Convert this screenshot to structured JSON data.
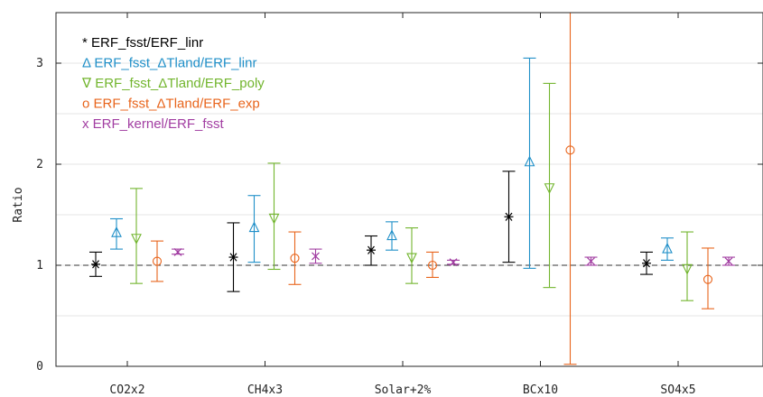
{
  "chart_data": {
    "type": "errorbar",
    "ylabel": "Ratio",
    "xlabel": "",
    "ylim": [
      0,
      3.5
    ],
    "yticks": [
      0,
      1,
      2,
      3
    ],
    "ytick_minor": [
      0.5,
      1.5,
      2.5,
      3.5
    ],
    "grid": "horizontal",
    "reference_line": 1,
    "legend_position": "top-left",
    "categories": [
      "CO2x2",
      "CH4x3",
      "Solar+2%",
      "BCx10",
      "SO4x5"
    ],
    "series": [
      {
        "name": "ERF_fsst/ERF_linr",
        "legend_symbol": "*",
        "marker": "asterisk",
        "color": "#000000",
        "values": [
          1.01,
          1.08,
          1.15,
          1.48,
          1.02
        ],
        "lower": [
          0.89,
          0.74,
          1.0,
          1.03,
          0.91
        ],
        "upper": [
          1.13,
          1.42,
          1.29,
          1.93,
          1.13
        ]
      },
      {
        "name": "ERF_fsst_ΔTland/ERF_linr",
        "legend_symbol": "Δ",
        "marker": "triangle-up",
        "color": "#1f8fc8",
        "values": [
          1.32,
          1.37,
          1.29,
          2.02,
          1.16
        ],
        "lower": [
          1.16,
          1.03,
          1.15,
          0.97,
          1.05
        ],
        "upper": [
          1.46,
          1.69,
          1.43,
          3.05,
          1.27
        ]
      },
      {
        "name": "ERF_fsst_ΔTland/ERF_poly",
        "legend_symbol": "∇",
        "marker": "triangle-down",
        "color": "#72b52e",
        "values": [
          1.27,
          1.47,
          1.08,
          1.77,
          0.97
        ],
        "lower": [
          0.82,
          0.96,
          0.82,
          0.78,
          0.65
        ],
        "upper": [
          1.76,
          2.01,
          1.37,
          2.8,
          1.33
        ]
      },
      {
        "name": "ERF_fsst_ΔTland/ERF_exp",
        "legend_symbol": "o",
        "marker": "circle",
        "color": "#e8641b",
        "values": [
          1.04,
          1.07,
          1.0,
          2.14,
          0.86
        ],
        "lower": [
          0.84,
          0.81,
          0.88,
          0.02,
          0.57
        ],
        "upper": [
          1.24,
          1.33,
          1.13,
          3.5,
          1.17
        ]
      },
      {
        "name": "ERF_kernel/ERF_fsst",
        "legend_symbol": "x",
        "marker": "x",
        "color": "#a23ea2",
        "values": [
          1.13,
          1.09,
          1.03,
          1.04,
          1.04
        ],
        "lower": [
          1.11,
          1.02,
          1.01,
          1.0,
          1.0
        ],
        "upper": [
          1.16,
          1.16,
          1.05,
          1.08,
          1.08
        ]
      }
    ]
  }
}
